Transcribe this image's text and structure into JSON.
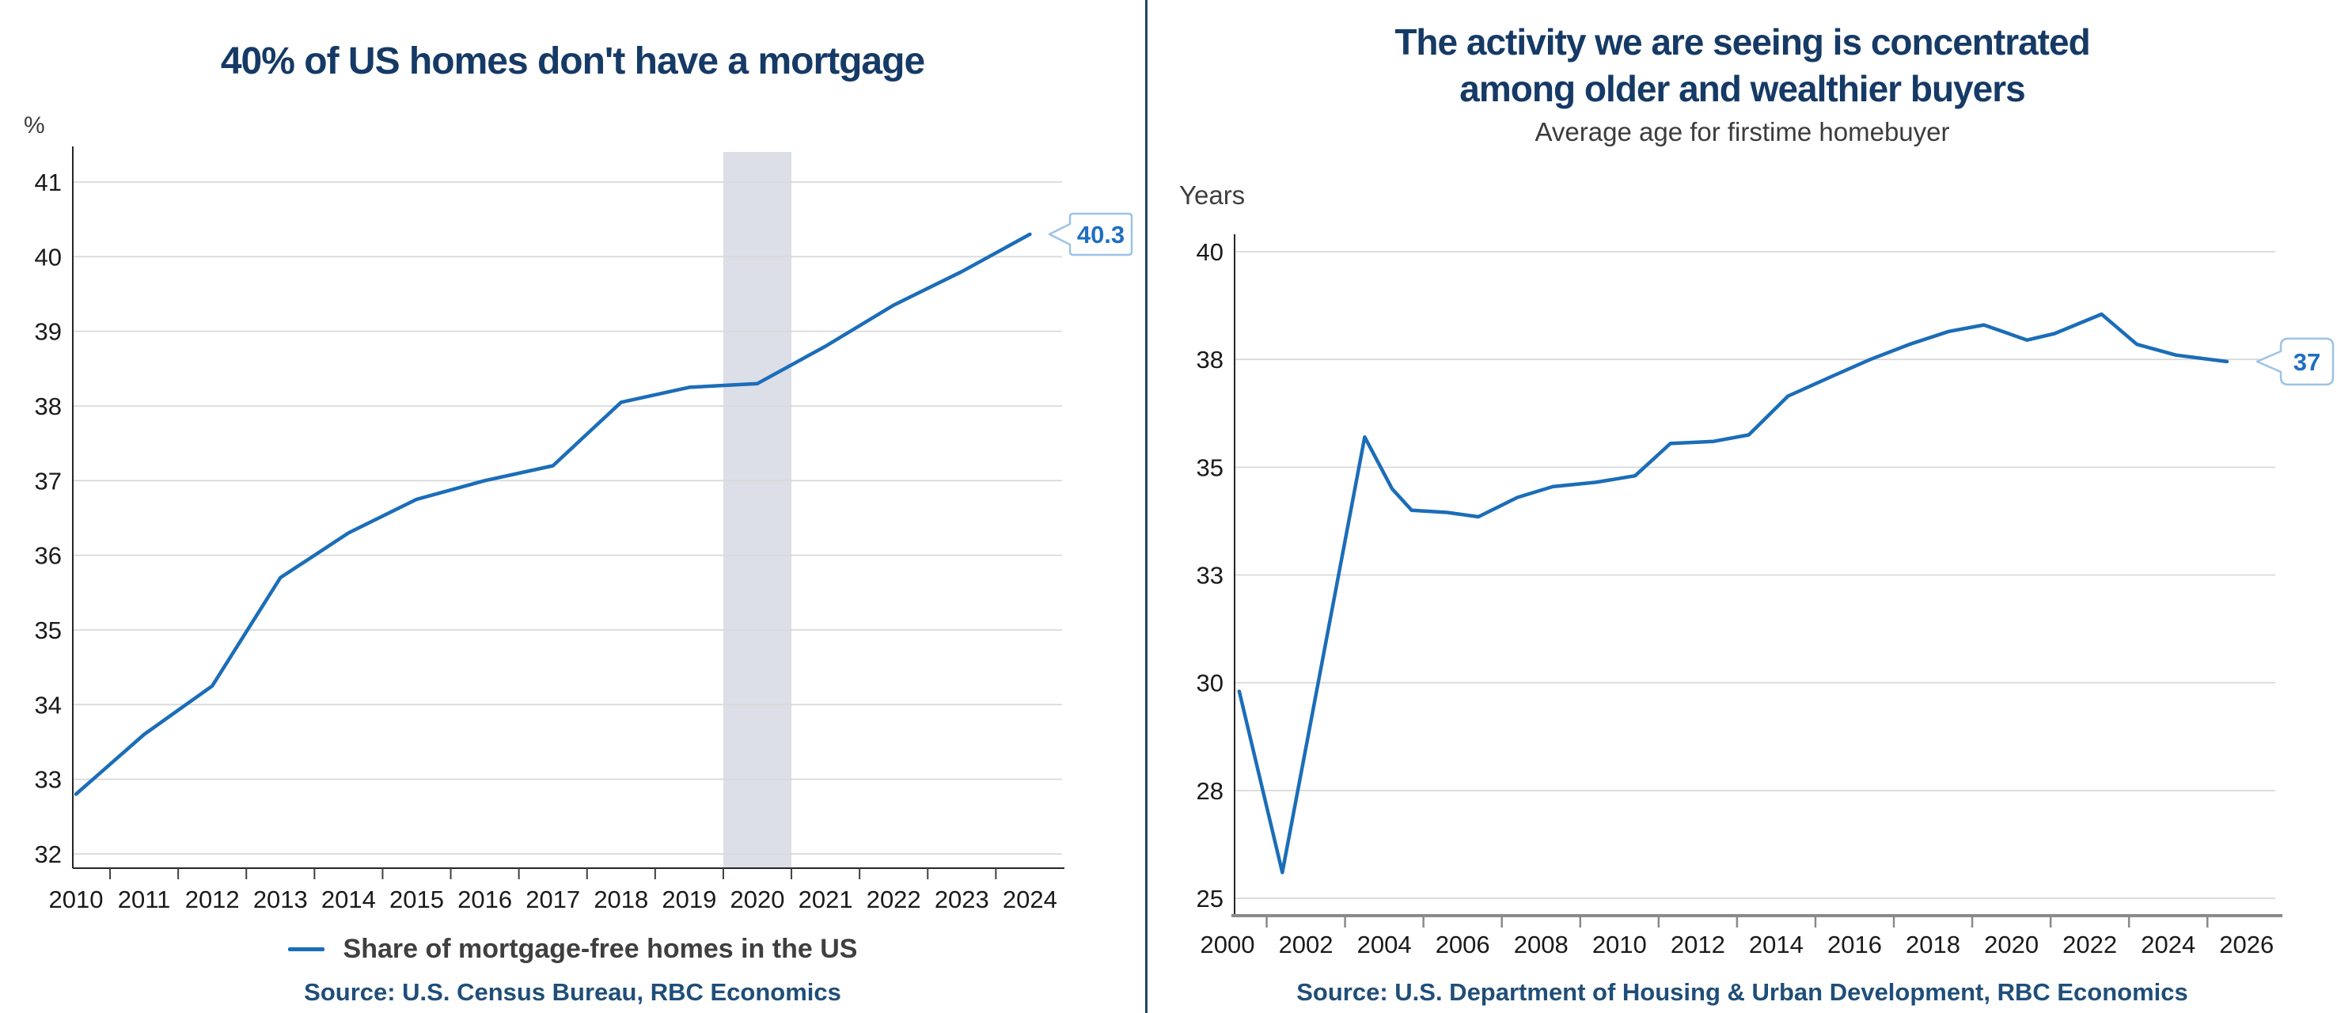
{
  "page": {
    "background": "#ffffff",
    "divider_color": "#1b4a5e",
    "accent_blue": "#1b6db8",
    "title_color": "#163a66",
    "source_color": "#1f4e79"
  },
  "chart_data": [
    {
      "type": "line",
      "title": "40% of US homes don't have a mortgage",
      "unit_label": "%",
      "legend": "Share of mortgage-free homes in the US",
      "legend_position": "bottom",
      "source": "Source: U.S. Census Bureau, RBC Economics",
      "line_color": "#1b6db8",
      "grid": true,
      "x": [
        2010,
        2011,
        2012,
        2013,
        2014,
        2015,
        2016,
        2017,
        2018,
        2019,
        2020,
        2021,
        2022,
        2023,
        2024
      ],
      "values": [
        32.8,
        33.6,
        34.25,
        35.7,
        36.3,
        36.75,
        37.0,
        37.2,
        38.05,
        38.25,
        38.3,
        38.8,
        39.35,
        39.8,
        40.3
      ],
      "yticks": [
        {
          "v": 41,
          "label": "41"
        },
        {
          "v": 40,
          "label": "40"
        },
        {
          "v": 39,
          "label": "39"
        },
        {
          "v": 38,
          "label": "38"
        },
        {
          "v": 37,
          "label": "37"
        },
        {
          "v": 36,
          "label": "36"
        },
        {
          "v": 35,
          "label": "35"
        },
        {
          "v": 34,
          "label": "34"
        },
        {
          "v": 33,
          "label": "33"
        },
        {
          "v": 32,
          "label": "32"
        }
      ],
      "xticks": [
        2010,
        2011,
        2012,
        2013,
        2014,
        2015,
        2016,
        2017,
        2018,
        2019,
        2020,
        2021,
        2022,
        2023,
        2024
      ],
      "ylim": [
        31.8,
        41.4
      ],
      "xlim": [
        2010,
        2024.5
      ],
      "shaded_band": {
        "from": 2019.5,
        "to": 2020.5,
        "color": "#dcdee8"
      },
      "end_label": "40.3",
      "end_label_color": "#1f6fc0",
      "callout_border": "#9dc3e6"
    },
    {
      "type": "line",
      "title_lines": [
        "The activity we are seeing is concentrated",
        "among older and wealthier buyers"
      ],
      "subtitle": "Average age for firstime homebuyer",
      "unit_label": "Years",
      "source": "Source: U.S. Department of Housing & Urban Development, RBC Economics",
      "line_color": "#1b6db8",
      "grid": true,
      "x": [
        2000.3,
        2001.4,
        2003.5,
        2004.2,
        2004.7,
        2005.6,
        2006.4,
        2007.4,
        2008.3,
        2009.4,
        2010.4,
        2011.3,
        2012.4,
        2013.3,
        2014.3,
        2015.4,
        2016.4,
        2017.4,
        2018.4,
        2019.3,
        2020.4,
        2021.1,
        2022.3,
        2023.2,
        2024.2,
        2025.5
      ],
      "values": [
        29.8,
        25.6,
        35.7,
        34.5,
        34.0,
        33.95,
        33.85,
        34.3,
        34.55,
        34.65,
        34.8,
        35.55,
        35.6,
        35.75,
        36.65,
        37.1,
        37.5,
        37.85,
        38.15,
        38.3,
        37.95,
        38.1,
        38.55,
        37.85,
        37.6,
        37.45
      ],
      "yticks": [
        {
          "v": 40,
          "label": "40"
        },
        {
          "v": 37.5,
          "label": "38"
        },
        {
          "v": 35,
          "label": "35"
        },
        {
          "v": 32.5,
          "label": "33"
        },
        {
          "v": 30,
          "label": "30"
        },
        {
          "v": 27.5,
          "label": "28"
        },
        {
          "v": 25,
          "label": "25"
        }
      ],
      "xticks": [
        2000,
        2002,
        2004,
        2006,
        2008,
        2010,
        2012,
        2014,
        2016,
        2018,
        2020,
        2022,
        2024,
        2026
      ],
      "ylim": [
        24.6,
        40.4
      ],
      "xlim": [
        2000,
        2026.6
      ],
      "end_label": "37",
      "end_label_color": "#1f6fc0",
      "callout_border": "#9dc3e6"
    }
  ]
}
